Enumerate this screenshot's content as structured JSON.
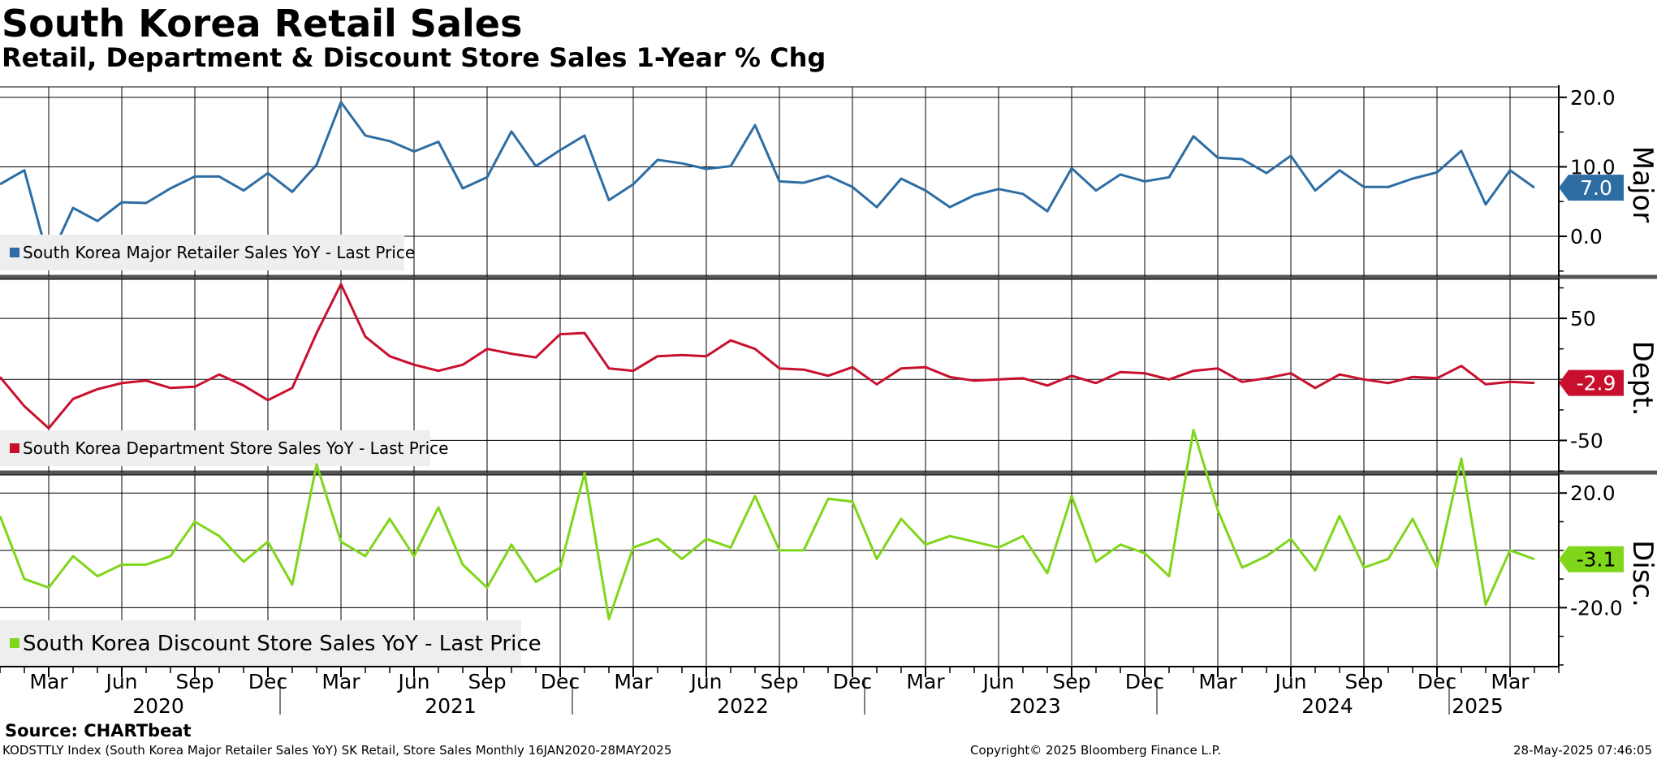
{
  "header": {
    "title": "South Korea Retail Sales",
    "subtitle": "Retail, Department & Discount Store Sales 1-Year % Chg"
  },
  "footer": {
    "source": "Source: CHARTbeat",
    "index_info": "KODSTTLY Index (South Korea Major Retailer Sales YoY) SK Retail, Store Sales  Monthly 16JAN2020-28MAY2025",
    "copyright": "Copyright© 2025 Bloomberg Finance L.P.",
    "timestamp": "28-May-2025 07:46:05"
  },
  "chart_data": [
    {
      "type": "line",
      "panel_label": "Major",
      "legend": "South Korea Major Retailer Sales YoY - Last Price",
      "color": "#2e6da4",
      "last_value_label": "7.0",
      "yticks": [
        0.0,
        10.0,
        20.0
      ],
      "ytick_labels": [
        "0.0",
        "10.0",
        "20.0"
      ],
      "ylim": [
        -5.6,
        21.5
      ],
      "x": [
        "2020-01",
        "2020-02",
        "2020-03",
        "2020-04",
        "2020-05",
        "2020-06",
        "2020-07",
        "2020-08",
        "2020-09",
        "2020-10",
        "2020-11",
        "2020-12",
        "2021-01",
        "2021-02",
        "2021-03",
        "2021-04",
        "2021-05",
        "2021-06",
        "2021-07",
        "2021-08",
        "2021-09",
        "2021-10",
        "2021-11",
        "2021-12",
        "2022-01",
        "2022-02",
        "2022-03",
        "2022-04",
        "2022-05",
        "2022-06",
        "2022-07",
        "2022-08",
        "2022-09",
        "2022-10",
        "2022-11",
        "2022-12",
        "2023-01",
        "2023-02",
        "2023-03",
        "2023-04",
        "2023-05",
        "2023-06",
        "2023-07",
        "2023-08",
        "2023-09",
        "2023-10",
        "2023-11",
        "2023-12",
        "2024-01",
        "2024-02",
        "2024-03",
        "2024-04",
        "2024-05",
        "2024-06",
        "2024-07",
        "2024-08",
        "2024-09",
        "2024-10",
        "2024-11",
        "2024-12",
        "2025-01",
        "2025-02",
        "2025-03",
        "2025-04"
      ],
      "values": [
        7.5,
        9.5,
        -3.5,
        4.1,
        2.2,
        4.9,
        4.8,
        6.9,
        8.6,
        8.6,
        6.6,
        9.1,
        6.4,
        10.3,
        19.3,
        14.5,
        13.7,
        12.2,
        13.6,
        6.9,
        8.5,
        15.1,
        10.1,
        12.4,
        14.5,
        5.2,
        7.5,
        11.0,
        10.5,
        9.7,
        10.1,
        16.0,
        7.9,
        7.7,
        8.7,
        7.1,
        4.2,
        8.3,
        6.6,
        4.2,
        5.9,
        6.8,
        6.1,
        3.6,
        9.8,
        6.6,
        8.9,
        7.9,
        8.5,
        14.4,
        11.3,
        11.1,
        9.1,
        11.6,
        6.6,
        9.5,
        7.1,
        7.1,
        8.3,
        9.2,
        12.3,
        4.6,
        9.5,
        7.0
      ]
    },
    {
      "type": "line",
      "panel_label": "Dept.",
      "legend": "South Korea Department Store Sales YoY - Last Price",
      "color": "#c8102e",
      "last_value_label": "-2.9",
      "yticks": [
        -50,
        50
      ],
      "ytick_labels": [
        "-50",
        "50"
      ],
      "ylim": [
        -75,
        82
      ],
      "x": [
        "2020-01",
        "2020-02",
        "2020-03",
        "2020-04",
        "2020-05",
        "2020-06",
        "2020-07",
        "2020-08",
        "2020-09",
        "2020-10",
        "2020-11",
        "2020-12",
        "2021-01",
        "2021-02",
        "2021-03",
        "2021-04",
        "2021-05",
        "2021-06",
        "2021-07",
        "2021-08",
        "2021-09",
        "2021-10",
        "2021-11",
        "2021-12",
        "2022-01",
        "2022-02",
        "2022-03",
        "2022-04",
        "2022-05",
        "2022-06",
        "2022-07",
        "2022-08",
        "2022-09",
        "2022-10",
        "2022-11",
        "2022-12",
        "2023-01",
        "2023-02",
        "2023-03",
        "2023-04",
        "2023-05",
        "2023-06",
        "2023-07",
        "2023-08",
        "2023-09",
        "2023-10",
        "2023-11",
        "2023-12",
        "2024-01",
        "2024-02",
        "2024-03",
        "2024-04",
        "2024-05",
        "2024-06",
        "2024-07",
        "2024-08",
        "2024-09",
        "2024-10",
        "2024-11",
        "2024-12",
        "2025-01",
        "2025-02",
        "2025-03",
        "2025-04"
      ],
      "values": [
        2,
        -22,
        -40,
        -16,
        -8,
        -3,
        -1,
        -7,
        -6,
        4,
        -5,
        -17,
        -7,
        38,
        78,
        35,
        19,
        12,
        7,
        12,
        25,
        21,
        18,
        37,
        38,
        9,
        7,
        19,
        20,
        19,
        32,
        25,
        9,
        8,
        3,
        10,
        -4,
        9,
        10,
        2,
        -1,
        0,
        1,
        -5,
        3,
        -3,
        6,
        5,
        0,
        7,
        9,
        -2,
        1,
        5,
        -7,
        4,
        0,
        -3,
        2,
        1,
        11,
        -4,
        -2,
        -2.9
      ]
    },
    {
      "type": "line",
      "panel_label": "Disc.",
      "legend": "South Korea Discount Store Sales YoY - Last Price",
      "color": "#7fd61a",
      "last_value_label": "-3.1",
      "yticks": [
        -20.0,
        20.0
      ],
      "ytick_labels": [
        "-20.0",
        "20.0"
      ],
      "ylim": [
        -40.3,
        26.3
      ],
      "x": [
        "2020-01",
        "2020-02",
        "2020-03",
        "2020-04",
        "2020-05",
        "2020-06",
        "2020-07",
        "2020-08",
        "2020-09",
        "2020-10",
        "2020-11",
        "2020-12",
        "2021-01",
        "2021-02",
        "2021-03",
        "2021-04",
        "2021-05",
        "2021-06",
        "2021-07",
        "2021-08",
        "2021-09",
        "2021-10",
        "2021-11",
        "2021-12",
        "2022-01",
        "2022-02",
        "2022-03",
        "2022-04",
        "2022-05",
        "2022-06",
        "2022-07",
        "2022-08",
        "2022-09",
        "2022-10",
        "2022-11",
        "2022-12",
        "2023-01",
        "2023-02",
        "2023-03",
        "2023-04",
        "2023-05",
        "2023-06",
        "2023-07",
        "2023-08",
        "2023-09",
        "2023-10",
        "2023-11",
        "2023-12",
        "2024-01",
        "2024-02",
        "2024-03",
        "2024-04",
        "2024-05",
        "2024-06",
        "2024-07",
        "2024-08",
        "2024-09",
        "2024-10",
        "2024-11",
        "2024-12",
        "2025-01",
        "2025-02",
        "2025-03",
        "2025-04"
      ],
      "values": [
        12,
        -10,
        -13,
        -2,
        -9,
        -5,
        -5,
        -2,
        10,
        5,
        -4,
        3,
        -12,
        30,
        3,
        -2,
        11,
        -2,
        15,
        -5,
        -13,
        2,
        -11,
        -6,
        27,
        -24,
        1,
        4,
        -3,
        4,
        1,
        19,
        0,
        0,
        18,
        17,
        -3,
        11,
        2,
        5,
        3,
        1,
        5,
        -8,
        19,
        -4,
        2,
        -1,
        -9,
        42,
        14,
        -6,
        -2,
        4,
        -7,
        12,
        -6,
        -3,
        11,
        -6,
        32,
        -19,
        0,
        -3.1
      ]
    }
  ],
  "x_axis": {
    "month_labels": [
      "Mar",
      "Jun",
      "Sep",
      "Dec",
      "Mar",
      "Jun",
      "Sep",
      "Dec",
      "Mar",
      "Jun",
      "Sep",
      "Dec",
      "Mar",
      "Jun",
      "Sep",
      "Dec",
      "Mar",
      "Jun",
      "Sep",
      "Dec",
      "Mar"
    ],
    "month_label_dates": [
      "2020-03",
      "2020-06",
      "2020-09",
      "2020-12",
      "2021-03",
      "2021-06",
      "2021-09",
      "2021-12",
      "2022-03",
      "2022-06",
      "2022-09",
      "2022-12",
      "2023-03",
      "2023-06",
      "2023-09",
      "2023-12",
      "2024-03",
      "2024-06",
      "2024-09",
      "2024-12",
      "2025-03"
    ],
    "year_labels": [
      "2020",
      "2021",
      "2022",
      "2023",
      "2024",
      "2025"
    ],
    "year_label_dates": [
      "2020-07",
      "2021-07",
      "2022-07",
      "2023-07",
      "2024-07",
      "2025-02"
    ]
  }
}
